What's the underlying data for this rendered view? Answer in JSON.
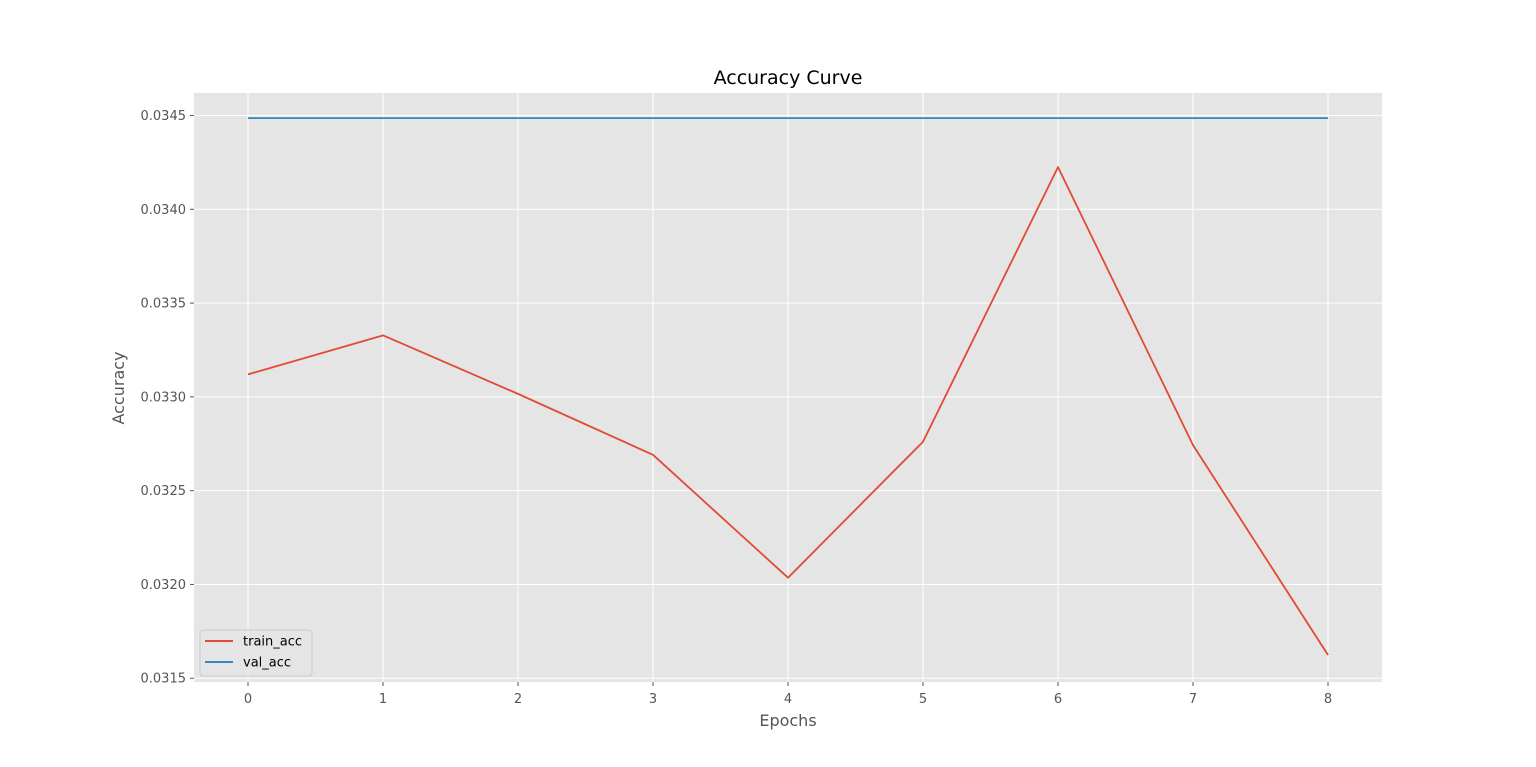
{
  "chart_data": {
    "type": "line",
    "title": "Accuracy Curve",
    "xlabel": "Epochs",
    "ylabel": "Accuracy",
    "x": [
      0,
      1,
      2,
      3,
      4,
      5,
      6,
      7,
      8
    ],
    "xlim": [
      -0.4,
      8.4
    ],
    "ylim": [
      0.03148,
      0.03462
    ],
    "xticks": [
      0,
      1,
      2,
      3,
      4,
      5,
      6,
      7,
      8
    ],
    "yticks": [
      "0.0315",
      "0.0320",
      "0.0325",
      "0.0330",
      "0.0335",
      "0.0340",
      "0.0345"
    ],
    "grid": true,
    "legend_position": "lower-left",
    "series": [
      {
        "name": "train_acc",
        "color": "#e24a33",
        "values": [
          0.03312,
          0.033328,
          0.033016,
          0.032691,
          0.032036,
          0.032761,
          0.034225,
          0.032743,
          0.031624
        ]
      },
      {
        "name": "val_acc",
        "color": "#348abd",
        "values": [
          0.034486,
          0.034486,
          0.034486,
          0.034486,
          0.034486,
          0.034486,
          0.034486,
          0.034486,
          0.034486
        ]
      }
    ],
    "colors": {
      "plot_background": "#e5e5e5",
      "grid": "#ffffff"
    }
  }
}
